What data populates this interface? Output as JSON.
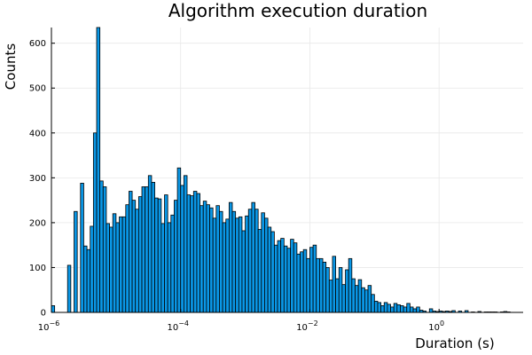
{
  "chart_data": {
    "type": "bar",
    "title": "Algorithm execution duration",
    "xlabel": "Duration (s)",
    "ylabel": "Counts",
    "x_scale": "log10",
    "xlim": [
      1e-06,
      20
    ],
    "ylim": [
      0,
      635
    ],
    "x_ticks": [
      {
        "base": "10",
        "exp": "−6"
      },
      {
        "base": "10",
        "exp": "−4"
      },
      {
        "base": "10",
        "exp": "−2"
      },
      {
        "base": "10",
        "exp": "0"
      }
    ],
    "y_ticks": [
      0,
      100,
      200,
      300,
      400,
      500,
      600
    ],
    "grid": true,
    "legend": "none",
    "bar_color": "#0a97e6",
    "bin_width_log10": 0.05,
    "bins_start_log10": -6,
    "values": [
      15,
      0,
      0,
      0,
      0,
      105,
      0,
      225,
      0,
      288,
      148,
      140,
      192,
      400,
      635,
      293,
      280,
      198,
      190,
      220,
      200,
      213,
      213,
      240,
      270,
      250,
      230,
      258,
      280,
      280,
      305,
      290,
      255,
      253,
      198,
      262,
      200,
      217,
      250,
      322,
      283,
      305,
      262,
      260,
      270,
      265,
      238,
      248,
      240,
      233,
      210,
      238,
      225,
      200,
      208,
      245,
      225,
      210,
      213,
      182,
      215,
      230,
      245,
      230,
      185,
      222,
      210,
      190,
      180,
      150,
      160,
      165,
      148,
      143,
      163,
      155,
      130,
      135,
      140,
      120,
      145,
      150,
      120,
      120,
      112,
      100,
      72,
      125,
      75,
      100,
      62,
      95,
      120,
      75,
      60,
      73,
      55,
      50,
      60,
      40,
      25,
      22,
      15,
      22,
      18,
      12,
      20,
      17,
      15,
      12,
      20,
      12,
      8,
      12,
      5,
      3,
      0,
      8,
      3,
      2,
      3,
      2,
      3,
      2,
      4,
      0,
      3,
      0,
      4,
      0,
      1,
      0,
      2,
      0,
      1,
      1,
      1,
      1,
      0,
      1,
      2,
      1
    ]
  }
}
